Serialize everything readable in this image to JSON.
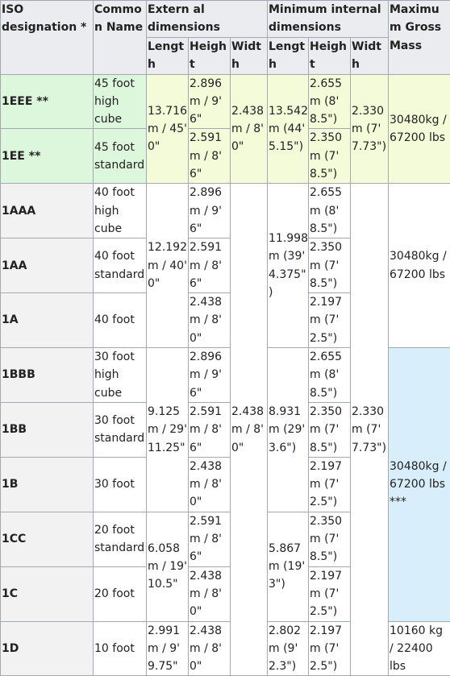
{
  "headers": {
    "iso": "ISO designation *",
    "common_name": "Common Name",
    "external": "Extern al dimensions",
    "internal": "Minimum internal dimensions",
    "max_mass": "Maximum Gross Mass",
    "length": "Length",
    "height": "Height",
    "width": "Width",
    "int_length": "Length",
    "int_height": "Height",
    "int_width": "Width"
  },
  "rows": [
    {
      "iso": "1EEE **",
      "name": "45 foot high cube",
      "ext_height": "2.896 m / 9' 6\"",
      "int_height": "2.655 m (8' 8.5\")"
    },
    {
      "iso": "1EE **",
      "name": "45 foot standard",
      "ext_height": "2.591 m / 8' 6\"",
      "int_height": "2.350 m (7' 8.5\")"
    },
    {
      "iso": "1AAA",
      "name": "40 foot high cube",
      "ext_height": "2.896 m / 9' 6\"",
      "int_height": "2.655 m (8' 8.5\")"
    },
    {
      "iso": "1AA",
      "name": "40 foot standard",
      "ext_height": "2.591 m / 8' 6\"",
      "int_height": "2.350 m (7' 8.5\")"
    },
    {
      "iso": "1A",
      "name": "40 foot",
      "ext_height": "2.438 m / 8' 0\"",
      "int_height": "2.197 m (7' 2.5\")"
    },
    {
      "iso": "1BBB",
      "name": "30 foot high cube",
      "ext_height": "2.896 m / 9' 6\"",
      "int_height": "2.655 m (8' 8.5\")"
    },
    {
      "iso": "1BB",
      "name": "30 foot standard",
      "ext_height": "2.591 m / 8' 6\"",
      "int_height": "2.350 m (7' 8.5\")"
    },
    {
      "iso": "1B",
      "name": "30 foot",
      "ext_height": "2.438 m / 8' 0\"",
      "int_height": "2.197 m (7' 2.5\")"
    },
    {
      "iso": "1CC",
      "name": "20 foot standard",
      "ext_height": "2.591 m / 8' 6\"",
      "int_height": "2.350 m (7' 8.5\")"
    },
    {
      "iso": "1C",
      "name": "20 foot",
      "ext_height": "2.438 m / 8' 0\"",
      "int_height": "2.197 m (7' 2.5\")"
    },
    {
      "iso": "1D",
      "name": "10 foot",
      "ext_height": "2.438 m / 8' 0\"",
      "int_height": "2.197 m (7' 2.5\")"
    }
  ],
  "groups": {
    "e": {
      "ext_length": "13.716 m / 45' 0\"",
      "ext_width": "2.438 m / 8' 0\"",
      "int_length": "13.542 m (44' 5.15\")",
      "int_width": "2.330 m (7' 7.73\")",
      "mass": "30480kg / 67200 lbs"
    },
    "a": {
      "ext_length": "12.192 m / 40' 0\"",
      "int_length": "11.998 m (39' 4.375\")",
      "mass": "30480kg / 67200 lbs"
    },
    "b": {
      "ext_length": "9.125 m / 29' 11.25\"",
      "int_length": "8.931 m (29' 3.6\")"
    },
    "c": {
      "ext_length": "6.058 m / 19' 10.5\"",
      "int_length": "5.867 m (19' 3\")"
    },
    "d": {
      "ext_length": "2.991 m / 9' 9.75\"",
      "int_length": "2.802 m (9' 2.3\")",
      "mass": "10160 kg / 22400 lbs"
    },
    "shared": {
      "ext_width": "2.438 m / 8' 0\"",
      "int_width": "2.330 m (7' 7.73\")",
      "mass_bc": "30480kg / 67200 lbs ***"
    }
  },
  "colors": {
    "green": "#ddf7dd",
    "yellow": "#f4fbd9",
    "blue": "#d8eefa",
    "header": "#eaecf0"
  }
}
